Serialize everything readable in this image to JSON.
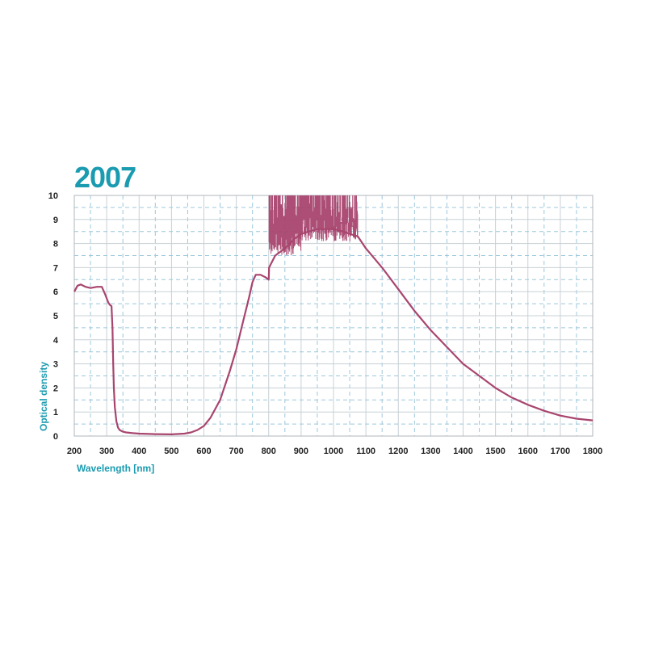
{
  "colors": {
    "accent": "#1a9bb0",
    "curve": "#a8456e",
    "grid": "#c7d0d6",
    "grid_dash": "#9cc7dc",
    "frame": "#b0b7bc",
    "text": "#222222"
  },
  "chart_data": {
    "type": "line",
    "title": "2007",
    "xlabel": "Wavelength [nm]",
    "ylabel": "Optical density",
    "xlim": [
      200,
      1800
    ],
    "ylim": [
      0,
      10
    ],
    "x_ticks": [
      200,
      300,
      400,
      500,
      600,
      700,
      800,
      900,
      1000,
      1100,
      1200,
      1300,
      1400,
      1500,
      1600,
      1700,
      1800
    ],
    "y_ticks": [
      0,
      1,
      2,
      3,
      4,
      5,
      6,
      7,
      8,
      9,
      10
    ],
    "grid": true,
    "legend": "none",
    "series": [
      {
        "x": [
          200,
          210,
          220,
          235,
          250,
          270,
          285,
          295,
          305,
          310,
          315,
          318,
          320,
          322,
          325,
          330,
          335,
          340,
          350,
          360,
          380,
          400,
          450,
          500,
          540,
          560,
          580,
          600,
          620,
          650,
          680,
          700,
          720,
          740,
          750,
          760,
          775,
          790,
          800,
          801,
          820,
          850,
          880,
          900,
          950,
          1000,
          1030,
          1050,
          1075,
          1100,
          1150,
          1200,
          1250,
          1300,
          1350,
          1400,
          1450,
          1500,
          1550,
          1600,
          1650,
          1700,
          1750,
          1800
        ],
        "values": [
          6.0,
          6.25,
          6.3,
          6.2,
          6.15,
          6.2,
          6.2,
          5.9,
          5.55,
          5.45,
          5.4,
          4.5,
          3.0,
          2.0,
          1.2,
          0.6,
          0.35,
          0.25,
          0.18,
          0.15,
          0.12,
          0.1,
          0.08,
          0.07,
          0.1,
          0.15,
          0.25,
          0.42,
          0.75,
          1.5,
          2.7,
          3.6,
          4.7,
          5.8,
          6.4,
          6.7,
          6.7,
          6.6,
          6.5,
          7.0,
          7.5,
          7.8,
          8.2,
          8.4,
          8.6,
          8.6,
          8.5,
          8.4,
          8.3,
          7.8,
          7.0,
          6.1,
          5.2,
          4.4,
          3.7,
          3.0,
          2.5,
          2.0,
          1.6,
          1.3,
          1.05,
          0.85,
          0.72,
          0.65
        ]
      }
    ],
    "noise_band": {
      "x": [
        801,
        1075
      ],
      "ylim": [
        7.5,
        10
      ]
    }
  }
}
